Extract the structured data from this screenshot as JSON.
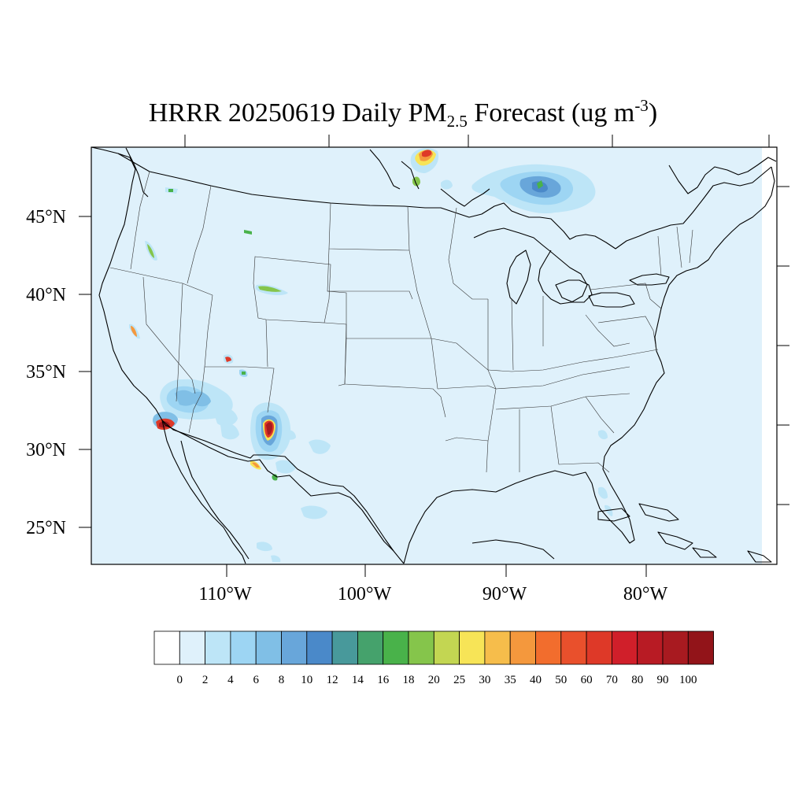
{
  "title": {
    "prefix": "HRRR 20250619 Daily PM",
    "subscript": "2.5",
    "middle": " Forecast (ug m",
    "superscript": "-3",
    "suffix": ")"
  },
  "map": {
    "projection": "lambert-conformal",
    "region": "CONUS",
    "latitude_labels": [
      "45°N",
      "40°N",
      "35°N",
      "30°N",
      "25°N"
    ],
    "longitude_labels": [
      "110°W",
      "100°W",
      "90°W",
      "80°W"
    ],
    "background_color": "#dff1fb",
    "boundary_color": "#000000"
  },
  "colorbar": {
    "labels": [
      "0",
      "2",
      "4",
      "6",
      "8",
      "10",
      "12",
      "14",
      "16",
      "18",
      "20",
      "25",
      "30",
      "35",
      "40",
      "50",
      "60",
      "70",
      "80",
      "90",
      "100"
    ],
    "colors": [
      "#ffffff",
      "#dff1fb",
      "#bde5f7",
      "#9dd5f3",
      "#80bfe6",
      "#68a6da",
      "#4a89c9",
      "#48999b",
      "#45a26c",
      "#49b24a",
      "#85c54b",
      "#c3d652",
      "#f7e457",
      "#f6bd4b",
      "#f4983d",
      "#f26d2d",
      "#e9502c",
      "#de3928",
      "#d01f2a",
      "#b81b24",
      "#a81a20",
      "#921419"
    ]
  },
  "hotspots": [
    {
      "name": "southern-california",
      "level": "100"
    },
    {
      "name": "new-mexico",
      "level": "100"
    },
    {
      "name": "manitoba-ontario-border",
      "level": "50"
    },
    {
      "name": "northern-ontario",
      "level": "12"
    }
  ]
}
